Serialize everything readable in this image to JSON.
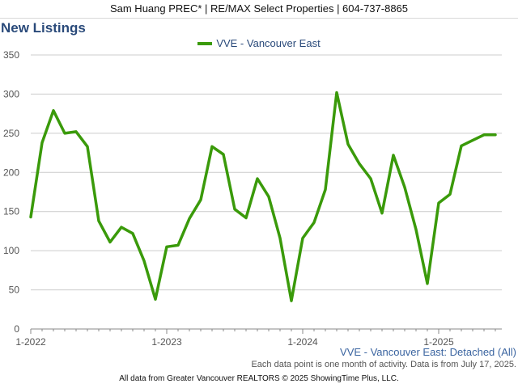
{
  "header": {
    "text": "Sam Huang PREC* | RE/MAX Select Properties | 604-737-8865"
  },
  "colors": {
    "series": "#3a9a0a",
    "grid": "#cccccc",
    "axis_text": "#555555",
    "title": "#2a4a7a"
  },
  "chart_data": {
    "type": "line",
    "title": "New Listings",
    "series": [
      {
        "name": "VVE - Vancouver East",
        "start": "2022-01",
        "values": [
          143,
          238,
          279,
          250,
          252,
          233,
          138,
          111,
          130,
          122,
          87,
          38,
          105,
          107,
          141,
          165,
          233,
          223,
          153,
          142,
          192,
          169,
          116,
          36,
          116,
          136,
          178,
          302,
          236,
          211,
          192,
          148,
          222,
          181,
          127,
          58,
          161,
          172,
          234,
          241,
          248,
          248
        ]
      }
    ],
    "x_ticks": [
      "1-2022",
      "1-2023",
      "1-2024",
      "1-2025"
    ],
    "y_ticks": [
      0,
      50,
      100,
      150,
      200,
      250,
      300,
      350
    ],
    "ylim": [
      0,
      350
    ],
    "grid": true,
    "legend": "top-center",
    "caption": "VVE - Vancouver East: Detached (All)",
    "note": "Each data point is one month of activity. Data is from July 17, 2025."
  },
  "footer": {
    "text": "All data from Greater Vancouver REALTORS © 2025 ShowingTime Plus, LLC."
  }
}
